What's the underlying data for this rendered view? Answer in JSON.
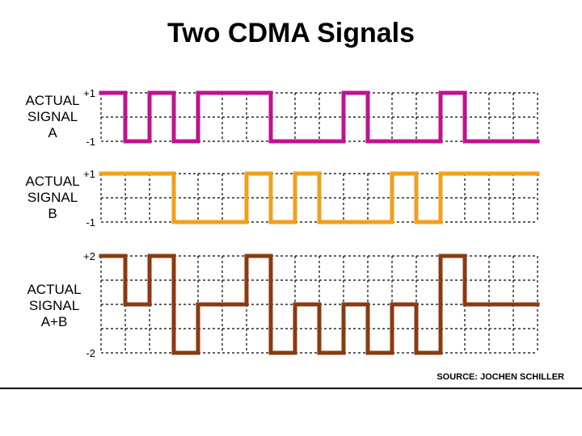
{
  "title": "Two CDMA Signals",
  "source": "SOURCE: JOCHEN SCHILLER",
  "chart_data": {
    "type": "line",
    "step": true,
    "grid": true,
    "x": [
      0,
      1,
      2,
      3,
      4,
      5,
      6,
      7,
      8,
      9,
      10,
      11,
      12,
      13,
      14,
      15,
      16,
      17,
      18
    ],
    "panels": [
      {
        "label": [
          "ACTUAL",
          "SIGNAL",
          "A"
        ],
        "ylim": [
          -1,
          1
        ],
        "yticks": [
          "+1",
          "-1"
        ],
        "color": "#c0128f",
        "values": [
          1,
          -1,
          1,
          -1,
          1,
          1,
          1,
          -1,
          -1,
          -1,
          1,
          -1,
          -1,
          -1,
          1,
          -1,
          -1,
          -1
        ]
      },
      {
        "label": [
          "ACTUAL",
          "SIGNAL",
          "B"
        ],
        "ylim": [
          -1,
          1
        ],
        "yticks": [
          "+1",
          "-1"
        ],
        "color": "#f0a01e",
        "values": [
          1,
          1,
          1,
          -1,
          -1,
          -1,
          1,
          -1,
          1,
          -1,
          -1,
          -1,
          1,
          -1,
          1,
          1,
          1,
          1
        ]
      },
      {
        "label": [
          "ACTUAL",
          "SIGNAL",
          "A+B"
        ],
        "ylim": [
          -2,
          2
        ],
        "yticks": [
          "+2",
          "-2"
        ],
        "color": "#8b3a0f",
        "values": [
          2,
          0,
          2,
          -2,
          0,
          0,
          2,
          -2,
          0,
          -2,
          0,
          -2,
          0,
          -2,
          2,
          0,
          0,
          0
        ]
      }
    ]
  }
}
